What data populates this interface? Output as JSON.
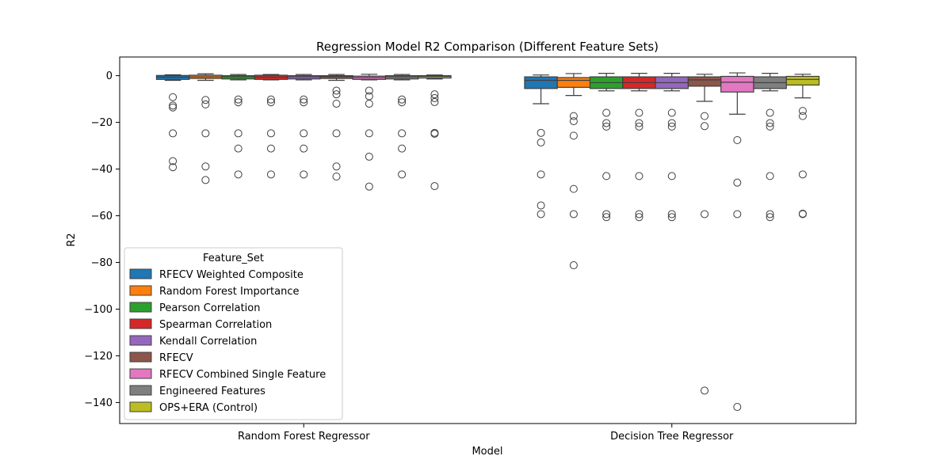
{
  "chart_data": {
    "type": "boxplot",
    "title": "Regression Model R2 Comparison (Different Feature Sets)",
    "xlabel": "Model",
    "ylabel": "R2",
    "ylim": [
      -149,
      8
    ],
    "yticks": [
      0,
      -20,
      -40,
      -60,
      -80,
      -100,
      -120,
      -140
    ],
    "categories": [
      "Random Forest Regressor",
      "Decision Tree Regressor"
    ],
    "legend": {
      "title": "Feature_Set",
      "position": "lower-left"
    },
    "series": [
      {
        "name": "RFECV Weighted Composite",
        "color": "#1f77b4",
        "boxes": [
          {
            "whislo": -2.0,
            "q1": -1.6,
            "med": -0.6,
            "q3": 0.1,
            "whishi": 0.4,
            "fliers": [
              -9.2,
              -12.8,
              -13.6,
              -24.7,
              -36.6,
              -39.2
            ]
          },
          {
            "whislo": -12.0,
            "q1": -5.5,
            "med": -2.0,
            "q3": -0.5,
            "whishi": 0.3,
            "fliers": [
              -24.5,
              -28.6,
              -42.3,
              -55.6,
              -59.3
            ]
          }
        ]
      },
      {
        "name": "Random Forest Importance",
        "color": "#ff7f0e",
        "boxes": [
          {
            "whislo": -2.0,
            "q1": -1.2,
            "med": -0.5,
            "q3": 0.2,
            "whishi": 0.8,
            "fliers": [
              -10.4,
              -12.3,
              -24.7,
              -38.9,
              -44.7
            ]
          },
          {
            "whislo": -8.5,
            "q1": -5.0,
            "med": -2.0,
            "q3": -0.8,
            "whishi": 0.9,
            "fliers": [
              -17.3,
              -19.5,
              -25.7,
              -48.5,
              -59.3,
              -81.2
            ]
          }
        ]
      },
      {
        "name": "Pearson Correlation",
        "color": "#2ca02c",
        "boxes": [
          {
            "whislo": -1.8,
            "q1": -1.4,
            "med": -0.5,
            "q3": 0.0,
            "whishi": 0.5,
            "fliers": [
              -10.2,
              -11.4,
              -24.7,
              -31.2,
              -42.3
            ]
          },
          {
            "whislo": -6.5,
            "q1": -5.5,
            "med": -3.0,
            "q3": -0.5,
            "whishi": 1.0,
            "fliers": [
              -15.9,
              -20.3,
              -21.8,
              -43.0,
              -59.3,
              -60.6
            ]
          }
        ]
      },
      {
        "name": "Spearman Correlation",
        "color": "#d62728",
        "boxes": [
          {
            "whislo": -1.8,
            "q1": -1.6,
            "med": -0.6,
            "q3": 0.2,
            "whishi": 0.5,
            "fliers": [
              -10.2,
              -11.4,
              -24.7,
              -31.2,
              -42.3
            ]
          },
          {
            "whislo": -6.5,
            "q1": -5.5,
            "med": -3.0,
            "q3": -0.5,
            "whishi": 1.0,
            "fliers": [
              -15.9,
              -20.3,
              -21.8,
              -43.0,
              -59.3,
              -60.6
            ]
          }
        ]
      },
      {
        "name": "Kendall Correlation",
        "color": "#9467bd",
        "boxes": [
          {
            "whislo": -1.8,
            "q1": -1.4,
            "med": -0.5,
            "q3": 0.0,
            "whishi": 0.5,
            "fliers": [
              -10.2,
              -11.4,
              -24.7,
              -31.2,
              -42.3
            ]
          },
          {
            "whislo": -6.5,
            "q1": -5.5,
            "med": -3.0,
            "q3": -0.5,
            "whishi": 1.0,
            "fliers": [
              -15.9,
              -20.3,
              -21.8,
              -43.0,
              -59.3,
              -60.6
            ]
          }
        ]
      },
      {
        "name": "RFECV",
        "color": "#8c564b",
        "boxes": [
          {
            "whislo": -2.0,
            "q1": -1.2,
            "med": -0.4,
            "q3": 0.0,
            "whishi": 0.5,
            "fliers": [
              -6.4,
              -8.0,
              -12.0,
              -24.7,
              -38.9,
              -43.2
            ]
          },
          {
            "whislo": -11.0,
            "q1": -4.5,
            "med": -1.8,
            "q3": -0.5,
            "whishi": 0.6,
            "fliers": [
              -17.3,
              -21.6,
              -59.3,
              -134.9
            ]
          }
        ]
      },
      {
        "name": "RFECV Combined Single Feature",
        "color": "#e377c2",
        "boxes": [
          {
            "whislo": -1.8,
            "q1": -1.6,
            "med": -0.8,
            "q3": -0.2,
            "whishi": 0.6,
            "fliers": [
              -6.4,
              -8.8,
              -12.0,
              -24.7,
              -34.7,
              -47.5
            ]
          },
          {
            "whislo": -16.5,
            "q1": -7.0,
            "med": -2.8,
            "q3": -0.3,
            "whishi": 1.2,
            "fliers": [
              -27.6,
              -45.8,
              -59.3,
              -141.9
            ]
          }
        ]
      },
      {
        "name": "Engineered Features",
        "color": "#7f7f7f",
        "boxes": [
          {
            "whislo": -1.8,
            "q1": -1.4,
            "med": -0.5,
            "q3": 0.0,
            "whishi": 0.5,
            "fliers": [
              -10.2,
              -11.4,
              -24.7,
              -31.2,
              -42.3
            ]
          },
          {
            "whislo": -6.5,
            "q1": -5.5,
            "med": -3.0,
            "q3": -0.5,
            "whishi": 1.0,
            "fliers": [
              -15.9,
              -20.3,
              -21.8,
              -43.0,
              -59.3,
              -60.6
            ]
          }
        ]
      },
      {
        "name": "OPS+ERA (Control)",
        "color": "#bcbd22",
        "boxes": [
          {
            "whislo": -1.4,
            "q1": -1.0,
            "med": -0.3,
            "q3": 0.0,
            "whishi": 0.3,
            "fliers": [
              -8.0,
              -9.6,
              -11.3,
              -24.5,
              -24.9,
              -47.3
            ]
          },
          {
            "whislo": -9.5,
            "q1": -4.0,
            "med": -1.6,
            "q3": -0.3,
            "whishi": 0.6,
            "fliers": [
              -15.1,
              -17.3,
              -42.3,
              -59.1,
              -59.3
            ]
          }
        ]
      }
    ]
  }
}
